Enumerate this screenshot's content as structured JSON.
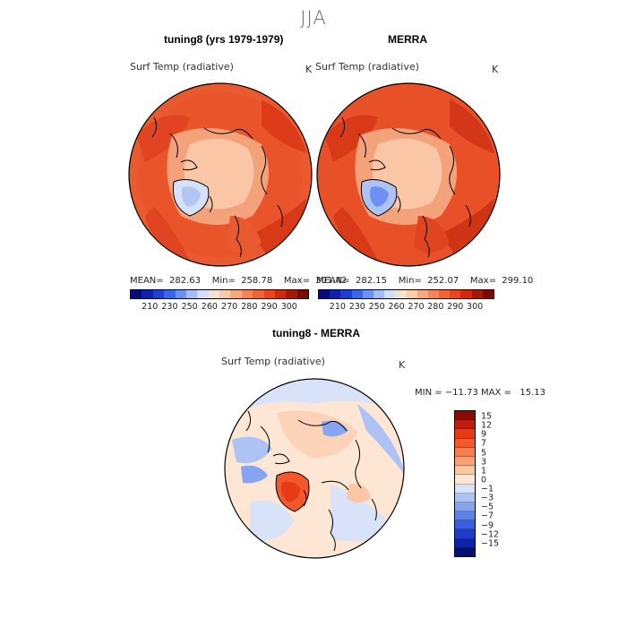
{
  "title": "JJA",
  "panels": {
    "left": {
      "title": "tuning8 (yrs 1979-1979)",
      "variable": "Surf Temp (radiative)",
      "unit": "K",
      "stats": "MEAN=  282.63    Min=  258.78    Max=  301.42"
    },
    "right": {
      "title": "MERRA",
      "variable": "Surf Temp (radiative)",
      "unit": "K",
      "stats": "MEAN=  282.15    Min=  252.07    Max=  299.10"
    },
    "diff": {
      "title": "tuning8 - MERRA",
      "variable": "Surf Temp (radiative)",
      "unit": "K",
      "stats": "MIN = −11.73 MAX =   15.13"
    }
  },
  "colorbar_abs": {
    "labels": [
      "210",
      "230",
      "250",
      "260",
      "270",
      "280",
      "290",
      "300"
    ],
    "colors": [
      "#0a0a78",
      "#1020a8",
      "#1e3fd0",
      "#3a64ea",
      "#6d90f4",
      "#a5bdf7",
      "#d3def8",
      "#f6e2d0",
      "#fbcaa8",
      "#f8a880",
      "#f58558",
      "#f0643a",
      "#e84420",
      "#cf2a10",
      "#a81808",
      "#7a0a04"
    ]
  },
  "colorbar_diff": {
    "labels": [
      "15",
      "12",
      "9",
      "7",
      "5",
      "3",
      "1",
      "0",
      "−1",
      "−3",
      "−5",
      "−7",
      "−9",
      "−12",
      "−15"
    ],
    "colors": [
      "#8c0a04",
      "#c41a0c",
      "#e63a16",
      "#f2582c",
      "#f77e4e",
      "#faa078",
      "#fcc6a4",
      "#fde6d4",
      "#d8e2f8",
      "#adc3f4",
      "#86a4f2",
      "#5d82ec",
      "#3a5ee2",
      "#1f3cca",
      "#0e23a6",
      "#070f70"
    ]
  }
}
